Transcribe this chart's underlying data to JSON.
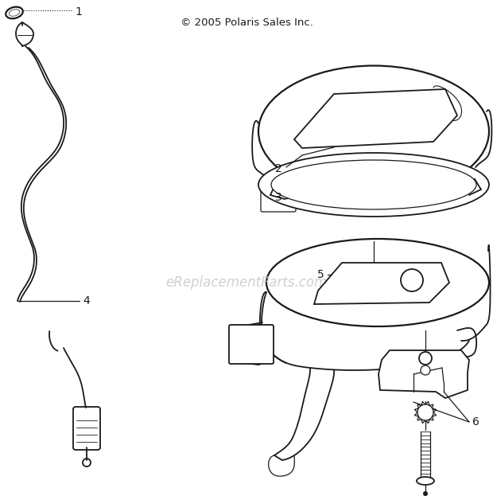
{
  "title": "© 2005 Polaris Sales Inc.",
  "watermark": "eReplacementParts.com",
  "bg_color": "#ffffff",
  "line_color": "#1a1a1a",
  "watermark_color": "#c8c8c8",
  "title_fontsize": 9.5,
  "watermark_fontsize": 12,
  "label_fontsize": 10
}
